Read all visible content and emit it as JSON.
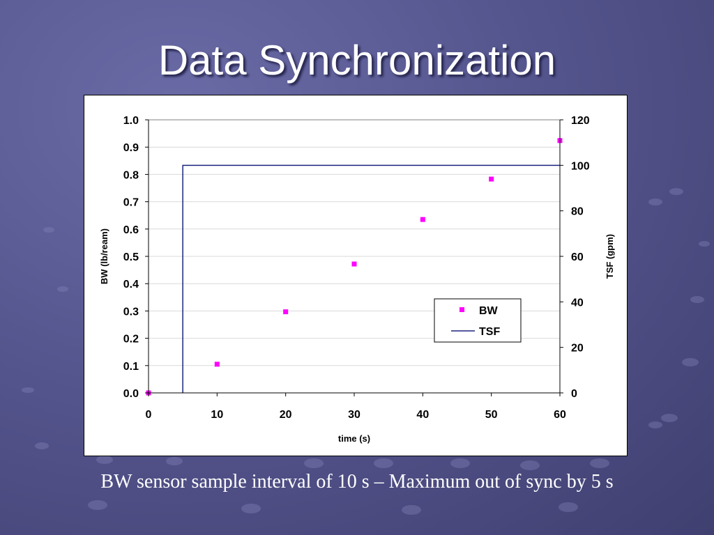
{
  "slide": {
    "title": "Data Synchronization",
    "caption": "BW sensor sample interval of 10 s – Maximum out of sync by 5 s"
  },
  "chart_data": {
    "type": "scatter",
    "xlabel": "time (s)",
    "ylabel": "BW (lb/ream)",
    "y2label": "TSF (gpm)",
    "xlim": [
      0,
      60
    ],
    "ylim": [
      0,
      1.0
    ],
    "y2lim": [
      0,
      120
    ],
    "x_ticks": [
      "0",
      "10",
      "20",
      "30",
      "40",
      "50",
      "60"
    ],
    "y_ticks": [
      "0.0",
      "0.1",
      "0.2",
      "0.3",
      "0.4",
      "0.5",
      "0.6",
      "0.7",
      "0.8",
      "0.9",
      "1.0"
    ],
    "y2_ticks": [
      "0",
      "20",
      "40",
      "60",
      "80",
      "100",
      "120"
    ],
    "grid": "horizontal",
    "legend_position": "center-right",
    "series": [
      {
        "name": "BW",
        "kind": "scatter",
        "axis": "left",
        "color": "#ff00ff",
        "x": [
          0,
          10,
          20,
          30,
          40,
          50,
          60
        ],
        "y": [
          0.0,
          0.105,
          0.297,
          0.472,
          0.635,
          0.783,
          0.924
        ]
      },
      {
        "name": "TSF",
        "kind": "step-line",
        "axis": "right",
        "color": "#1a237e",
        "x": [
          5,
          5,
          60
        ],
        "y": [
          0,
          100,
          100
        ]
      }
    ]
  }
}
